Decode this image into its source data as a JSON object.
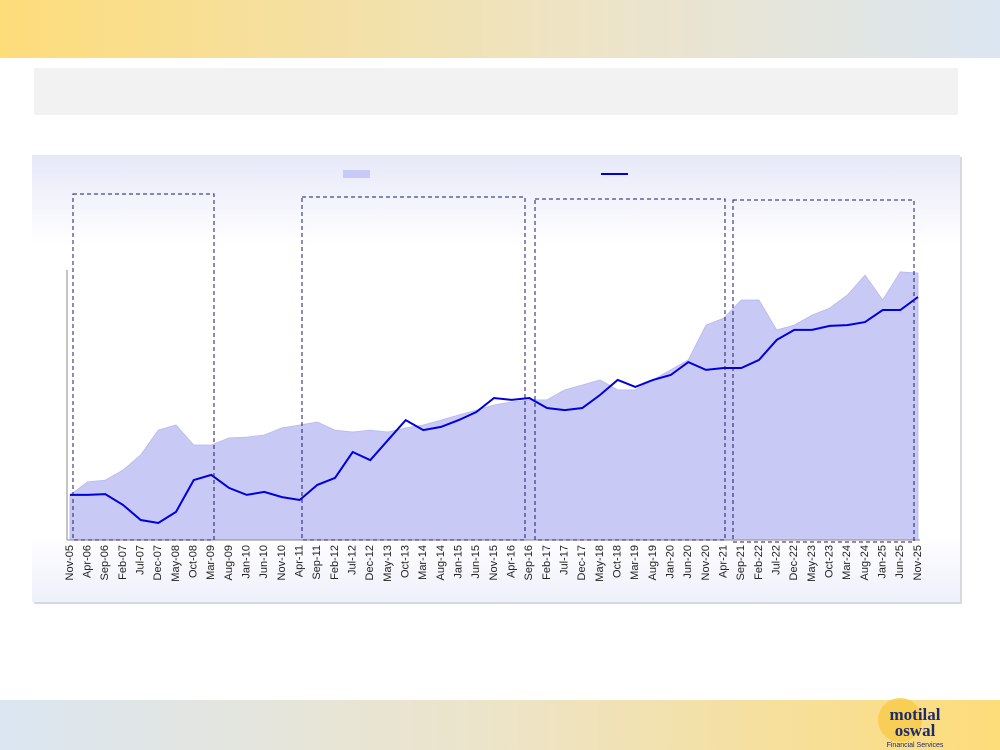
{
  "chart_data": {
    "type": "line",
    "categories": [
      "Nov-05",
      "Apr-06",
      "Sep-06",
      "Feb-07",
      "Jul-07",
      "Dec-07",
      "May-08",
      "Oct-08",
      "Mar-09",
      "Aug-09",
      "Jan-10",
      "Jun-10",
      "Nov-10",
      "Apr-11",
      "Sep-11",
      "Feb-12",
      "Jul-12",
      "Dec-12",
      "May-13",
      "Oct-13",
      "Mar-14",
      "Aug-14",
      "Jan-15",
      "Jun-15",
      "Nov-15",
      "Apr-16",
      "Sep-16",
      "Feb-17",
      "Jul-17",
      "Dec-17",
      "May-18",
      "Oct-18",
      "Mar-19",
      "Aug-19",
      "Jan-20",
      "Jun-20",
      "Nov-20",
      "Apr-21",
      "Sep-21",
      "Feb-22",
      "Jul-22",
      "Dec-22",
      "May-23",
      "Oct-23",
      "Mar-24",
      "Aug-24",
      "Jan-25",
      "Jun-25",
      "Nov-25"
    ],
    "series": [
      {
        "style": "area",
        "color": "#c9c9f6",
        "values": [
          16.7,
          21.5,
          22.2,
          25.9,
          31.5,
          40.7,
          42.6,
          35.2,
          35.2,
          37.8,
          38.1,
          38.9,
          41.5,
          42.6,
          43.7,
          40.7,
          40.0,
          40.7,
          40.0,
          41.5,
          42.6,
          44.4,
          46.3,
          48.1,
          50.0,
          51.1,
          51.9,
          51.9,
          55.6,
          57.4,
          59.3,
          55.6,
          55.6,
          59.3,
          63.0,
          66.7,
          79.6,
          82.2,
          88.9,
          88.9,
          77.8,
          79.6,
          83.3,
          85.9,
          90.7,
          98.1,
          88.9,
          99.3,
          98.9
        ]
      },
      {
        "style": "line",
        "color": "#0000dd",
        "values": [
          16.7,
          16.7,
          17.0,
          13.0,
          7.4,
          6.3,
          10.4,
          22.2,
          24.1,
          19.3,
          16.7,
          17.8,
          15.9,
          14.8,
          20.4,
          23.0,
          32.6,
          29.6,
          37.0,
          44.4,
          40.7,
          41.9,
          44.4,
          47.4,
          52.6,
          51.9,
          52.6,
          48.9,
          48.1,
          48.9,
          53.7,
          59.3,
          56.7,
          59.3,
          61.1,
          65.9,
          63.0,
          63.7,
          63.7,
          66.7,
          74.1,
          77.8,
          77.8,
          79.3,
          79.6,
          80.7,
          85.2,
          85.2,
          90.0
        ]
      }
    ],
    "ylim": [
      0,
      100
    ]
  },
  "logo": {
    "line1": "motilal",
    "line2": "oswal",
    "tagline": "Financial Services"
  }
}
